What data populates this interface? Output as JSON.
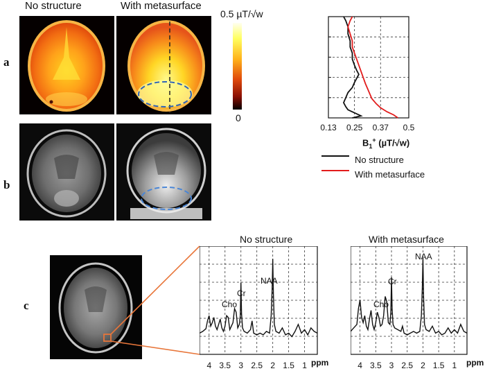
{
  "columns": {
    "no_structure": "No structure",
    "with_metasurface": "With metasurface"
  },
  "panels": {
    "a": "a",
    "b": "b",
    "c": "c"
  },
  "colorbar": {
    "max_label": "0.5 µT/√w",
    "min_label": "0"
  },
  "profile_chart": {
    "xlabel_main": "B",
    "xlabel_sub": "1",
    "xlabel_sup": "+",
    "xlabel_units": "(µT/√w)",
    "legend": [
      "No structure",
      "With metasurface"
    ],
    "colors": {
      "no_structure": "#111111",
      "with_metasurface": "#e21c1c"
    }
  },
  "spectra": {
    "left_title": "No structure",
    "right_title": "With metasurface",
    "peaks": {
      "naa": "NAA",
      "cr": "Cr",
      "cho": "Cho"
    },
    "ppm_label": "ppm"
  },
  "chart_data": [
    {
      "type": "line",
      "x_ticks": [
        "0.13",
        "0.25",
        "0.37",
        "0.5"
      ],
      "xlim": [
        0.13,
        0.5
      ],
      "grid": true,
      "series": [
        {
          "name": "No structure",
          "color": "#111111",
          "x": [
            0.2,
            0.21,
            0.22,
            0.22,
            0.23,
            0.23,
            0.24,
            0.24,
            0.25,
            0.26,
            0.27,
            0.26,
            0.25,
            0.24,
            0.22,
            0.21,
            0.2,
            0.21,
            0.22,
            0.25,
            0.28,
            0.24
          ],
          "y": [
            0,
            0.04,
            0.1,
            0.17,
            0.24,
            0.3,
            0.36,
            0.42,
            0.48,
            0.53,
            0.57,
            0.61,
            0.65,
            0.7,
            0.75,
            0.8,
            0.85,
            0.89,
            0.92,
            0.95,
            0.98,
            1
          ]
        },
        {
          "name": "With metasurface",
          "color": "#e21c1c",
          "x": [
            0.24,
            0.23,
            0.22,
            0.23,
            0.24,
            0.24,
            0.25,
            0.26,
            0.27,
            0.28,
            0.29,
            0.3,
            0.31,
            0.32,
            0.33,
            0.35,
            0.37,
            0.4,
            0.43,
            0.45
          ],
          "y": [
            0,
            0.04,
            0.1,
            0.17,
            0.24,
            0.3,
            0.36,
            0.42,
            0.48,
            0.54,
            0.6,
            0.66,
            0.71,
            0.76,
            0.81,
            0.86,
            0.9,
            0.94,
            0.97,
            1
          ]
        }
      ]
    },
    {
      "type": "line",
      "title": "No structure",
      "x_ticks": [
        "4",
        "3.5",
        "3",
        "2.5",
        "2",
        "1.5",
        "1"
      ],
      "xlabel": "ppm",
      "xlim": [
        4.3,
        0.6
      ],
      "grid": true,
      "series": [
        {
          "x": [
            4.3,
            4.2,
            4.1,
            4.05,
            4.0,
            3.95,
            3.9,
            3.85,
            3.8,
            3.75,
            3.7,
            3.65,
            3.6,
            3.55,
            3.5,
            3.45,
            3.4,
            3.35,
            3.3,
            3.25,
            3.2,
            3.15,
            3.1,
            3.05,
            3.02,
            3.0,
            2.98,
            2.95,
            2.9,
            2.8,
            2.7,
            2.65,
            2.6,
            2.5,
            2.4,
            2.3,
            2.2,
            2.1,
            2.05,
            2.02,
            2.0,
            1.98,
            1.95,
            1.9,
            1.8,
            1.7,
            1.6,
            1.5,
            1.4,
            1.3,
            1.2,
            1.1,
            1.0,
            0.9,
            0.8,
            0.7,
            0.6
          ],
          "y": [
            0.1,
            0.12,
            0.15,
            0.24,
            0.3,
            0.18,
            0.22,
            0.28,
            0.18,
            0.14,
            0.2,
            0.26,
            0.16,
            0.12,
            0.18,
            0.3,
            0.28,
            0.14,
            0.18,
            0.22,
            0.38,
            0.34,
            0.16,
            0.2,
            0.3,
            0.68,
            0.32,
            0.16,
            0.12,
            0.1,
            0.14,
            0.24,
            0.1,
            0.08,
            0.1,
            0.08,
            0.12,
            0.1,
            0.3,
            0.6,
            0.95,
            0.55,
            0.2,
            0.12,
            0.1,
            0.16,
            0.08,
            0.1,
            0.06,
            0.12,
            0.2,
            0.1,
            0.14,
            0.08,
            0.16,
            0.12,
            0.1
          ]
        }
      ]
    },
    {
      "type": "line",
      "title": "With metasurface",
      "x_ticks": [
        "4",
        "3.5",
        "3",
        "2.5",
        "2",
        "1.5",
        "1"
      ],
      "xlabel": "ppm",
      "xlim": [
        4.3,
        0.6
      ],
      "grid": true,
      "series": [
        {
          "x": [
            4.3,
            4.2,
            4.1,
            4.05,
            4.0,
            3.95,
            3.9,
            3.85,
            3.8,
            3.75,
            3.7,
            3.65,
            3.6,
            3.55,
            3.5,
            3.45,
            3.4,
            3.35,
            3.3,
            3.25,
            3.2,
            3.15,
            3.1,
            3.05,
            3.02,
            3.0,
            2.98,
            2.95,
            2.9,
            2.8,
            2.7,
            2.65,
            2.6,
            2.5,
            2.4,
            2.3,
            2.2,
            2.1,
            2.05,
            2.02,
            2.0,
            1.98,
            1.95,
            1.9,
            1.8,
            1.7,
            1.6,
            1.5,
            1.4,
            1.3,
            1.2,
            1.1,
            1.0,
            0.9,
            0.8,
            0.7,
            0.6
          ],
          "y": [
            0.12,
            0.16,
            0.2,
            0.38,
            0.48,
            0.28,
            0.22,
            0.3,
            0.18,
            0.14,
            0.26,
            0.36,
            0.2,
            0.14,
            0.22,
            0.34,
            0.28,
            0.18,
            0.2,
            0.3,
            0.52,
            0.46,
            0.22,
            0.2,
            0.34,
            0.74,
            0.38,
            0.2,
            0.16,
            0.14,
            0.12,
            0.18,
            0.1,
            0.08,
            0.1,
            0.12,
            0.1,
            0.12,
            0.3,
            0.62,
            0.96,
            0.52,
            0.2,
            0.14,
            0.12,
            0.18,
            0.1,
            0.12,
            0.08,
            0.1,
            0.16,
            0.1,
            0.14,
            0.1,
            0.2,
            0.12,
            0.1
          ]
        }
      ]
    }
  ]
}
